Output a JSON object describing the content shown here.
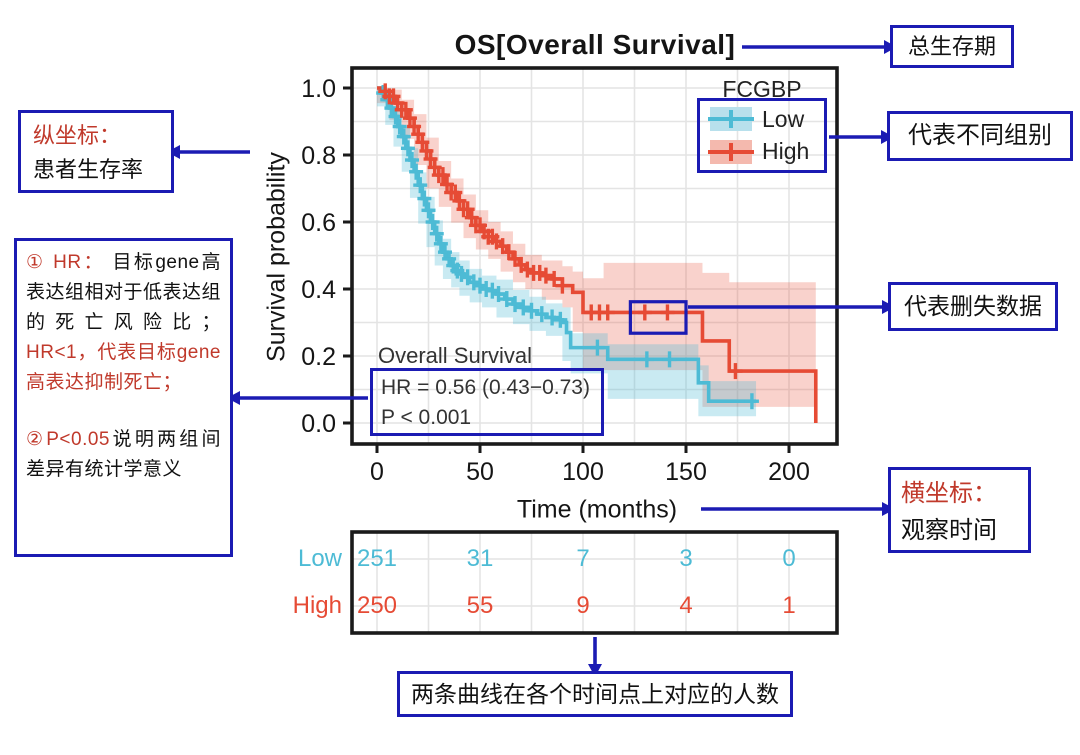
{
  "title": "OS[Overall Survival]",
  "colors": {
    "annotation_blue": "#1b1bb3",
    "red_text": "#c0392b",
    "low": "#4DBBD5",
    "high": "#E64B35",
    "low_band": "rgba(77,187,213,0.30)",
    "high_band": "rgba(230,75,53,0.25)",
    "low_swatch_bg": "#b8e0ec",
    "high_swatch_bg": "#f4b9ae",
    "frame": "#1a1a1a",
    "grid": "#e4e4e4"
  },
  "annotations": {
    "os": "总生存期",
    "groups": "代表不同组别",
    "censored": "代表删失数据",
    "xaxis": {
      "red": "横坐标：",
      "black": "观察时间"
    },
    "yaxis": {
      "red": "纵坐标：",
      "black": "患者生存率"
    },
    "hr": {
      "seg1_red": "① HR： ",
      "seg2_black": "目标gene高表达组相对于低表达组的死亡风险比；",
      "seg3_red": "HR<1，代表目标gene高表达抑制死亡；",
      "seg4_red": "②P<0.05",
      "seg5_black": "说明两组间差异有统计学意义"
    },
    "bottom": "两条曲线在各个时间点上对应的人数"
  },
  "chart_data": {
    "type": "line",
    "subtype": "kaplan-meier-step",
    "title": "OS[Overall Survival]",
    "xlabel": "Time (months)",
    "ylabel": "Survival probability",
    "xlim": [
      0,
      223
    ],
    "ylim": [
      0,
      1
    ],
    "x_ticks": [
      0,
      50,
      100,
      150,
      200
    ],
    "y_ticks": [
      1.0,
      0.8,
      0.6,
      0.4,
      0.2,
      0.0
    ],
    "grid": true,
    "legend_title": "FCGBP",
    "legend_position": "top-right",
    "inplot_label": "Overall Survival",
    "stats": {
      "hr": "HR = 0.56 (0.43−0.73)",
      "p": "P < 0.001"
    },
    "series": [
      {
        "name": "Low",
        "steps": [
          [
            0,
            1.0
          ],
          [
            2,
            0.985
          ],
          [
            4,
            0.965
          ],
          [
            6,
            0.94
          ],
          [
            8,
            0.915
          ],
          [
            10,
            0.885
          ],
          [
            12,
            0.855
          ],
          [
            14,
            0.82
          ],
          [
            16,
            0.785
          ],
          [
            18,
            0.75
          ],
          [
            20,
            0.71
          ],
          [
            22,
            0.67
          ],
          [
            24,
            0.635
          ],
          [
            26,
            0.6
          ],
          [
            28,
            0.565
          ],
          [
            30,
            0.535
          ],
          [
            32,
            0.51
          ],
          [
            34,
            0.49
          ],
          [
            36,
            0.47
          ],
          [
            38,
            0.455
          ],
          [
            40,
            0.445
          ],
          [
            42,
            0.435
          ],
          [
            45,
            0.42
          ],
          [
            48,
            0.41
          ],
          [
            51,
            0.4
          ],
          [
            54,
            0.395
          ],
          [
            58,
            0.385
          ],
          [
            62,
            0.37
          ],
          [
            66,
            0.355
          ],
          [
            70,
            0.345
          ],
          [
            74,
            0.335
          ],
          [
            78,
            0.325
          ],
          [
            82,
            0.315
          ],
          [
            86,
            0.308
          ],
          [
            90,
            0.3
          ],
          [
            92,
            0.27
          ],
          [
            94,
            0.225
          ],
          [
            112,
            0.19
          ],
          [
            156,
            0.12
          ],
          [
            161,
            0.065
          ],
          [
            184,
            0.065
          ]
        ],
        "censor_times": [
          3,
          5,
          7,
          9,
          11,
          13,
          15,
          17,
          19,
          21,
          23,
          25,
          27,
          29,
          31,
          33,
          35,
          37,
          39,
          41,
          44,
          47,
          50,
          53,
          56,
          59,
          63,
          67,
          71,
          75,
          80,
          85,
          89,
          107,
          131,
          142,
          182
        ],
        "ci_lo": [
          [
            0,
            0.99
          ],
          [
            4,
            0.945
          ],
          [
            8,
            0.89
          ],
          [
            12,
            0.825
          ],
          [
            16,
            0.75
          ],
          [
            20,
            0.672
          ],
          [
            24,
            0.595
          ],
          [
            28,
            0.525
          ],
          [
            32,
            0.47
          ],
          [
            36,
            0.43
          ],
          [
            40,
            0.405
          ],
          [
            45,
            0.38
          ],
          [
            51,
            0.36
          ],
          [
            58,
            0.345
          ],
          [
            66,
            0.315
          ],
          [
            74,
            0.295
          ],
          [
            82,
            0.275
          ],
          [
            90,
            0.26
          ],
          [
            94,
            0.185
          ],
          [
            112,
            0.148
          ],
          [
            156,
            0.072
          ],
          [
            161,
            0.02
          ],
          [
            184,
            0.02
          ]
        ],
        "ci_hi": [
          [
            0,
            1.0
          ],
          [
            4,
            0.985
          ],
          [
            8,
            0.94
          ],
          [
            12,
            0.885
          ],
          [
            16,
            0.82
          ],
          [
            20,
            0.748
          ],
          [
            24,
            0.675
          ],
          [
            28,
            0.605
          ],
          [
            32,
            0.55
          ],
          [
            36,
            0.51
          ],
          [
            40,
            0.485
          ],
          [
            45,
            0.46
          ],
          [
            51,
            0.44
          ],
          [
            58,
            0.428
          ],
          [
            66,
            0.397
          ],
          [
            74,
            0.377
          ],
          [
            82,
            0.357
          ],
          [
            90,
            0.345
          ],
          [
            94,
            0.268
          ],
          [
            112,
            0.235
          ],
          [
            156,
            0.172
          ],
          [
            161,
            0.125
          ],
          [
            184,
            0.125
          ]
        ]
      },
      {
        "name": "High",
        "steps": [
          [
            0,
            1.0
          ],
          [
            3,
            0.99
          ],
          [
            6,
            0.975
          ],
          [
            9,
            0.955
          ],
          [
            12,
            0.935
          ],
          [
            15,
            0.91
          ],
          [
            18,
            0.885
          ],
          [
            20,
            0.862
          ],
          [
            22,
            0.838
          ],
          [
            24,
            0.812
          ],
          [
            26,
            0.788
          ],
          [
            28,
            0.763
          ],
          [
            30,
            0.74
          ],
          [
            33,
            0.712
          ],
          [
            36,
            0.688
          ],
          [
            39,
            0.663
          ],
          [
            42,
            0.638
          ],
          [
            45,
            0.613
          ],
          [
            48,
            0.59
          ],
          [
            51,
            0.572
          ],
          [
            54,
            0.556
          ],
          [
            57,
            0.542
          ],
          [
            60,
            0.528
          ],
          [
            63,
            0.51
          ],
          [
            66,
            0.49
          ],
          [
            69,
            0.472
          ],
          [
            72,
            0.458
          ],
          [
            75,
            0.448
          ],
          [
            80,
            0.44
          ],
          [
            85,
            0.43
          ],
          [
            90,
            0.41
          ],
          [
            95,
            0.39
          ],
          [
            100,
            0.33
          ],
          [
            158,
            0.245
          ],
          [
            171,
            0.155
          ],
          [
            213,
            0.0
          ]
        ],
        "censor_times": [
          4,
          6,
          8,
          10,
          12,
          14,
          16,
          18,
          20,
          22,
          24,
          26,
          28,
          30,
          32,
          34,
          36,
          38,
          40,
          42,
          44,
          46,
          48,
          50,
          52,
          54,
          56,
          58,
          61,
          64,
          67,
          70,
          73,
          76,
          79,
          82,
          86,
          90,
          104,
          108,
          112,
          130,
          141,
          174
        ],
        "ci_lo": [
          [
            0,
            0.99
          ],
          [
            6,
            0.955
          ],
          [
            12,
            0.905
          ],
          [
            18,
            0.848
          ],
          [
            24,
            0.77
          ],
          [
            30,
            0.7
          ],
          [
            36,
            0.645
          ],
          [
            42,
            0.598
          ],
          [
            48,
            0.552
          ],
          [
            54,
            0.518
          ],
          [
            60,
            0.49
          ],
          [
            66,
            0.452
          ],
          [
            72,
            0.42
          ],
          [
            80,
            0.4
          ],
          [
            90,
            0.368
          ],
          [
            95,
            0.345
          ],
          [
            100,
            0.272
          ],
          [
            158,
            0.158
          ],
          [
            171,
            0.048
          ],
          [
            213,
            0.048
          ]
        ],
        "ci_hi": [
          [
            0,
            1.0
          ],
          [
            6,
            0.995
          ],
          [
            12,
            0.965
          ],
          [
            18,
            0.922
          ],
          [
            24,
            0.852
          ],
          [
            30,
            0.782
          ],
          [
            36,
            0.73
          ],
          [
            42,
            0.682
          ],
          [
            48,
            0.635
          ],
          [
            54,
            0.6
          ],
          [
            60,
            0.572
          ],
          [
            66,
            0.535
          ],
          [
            72,
            0.502
          ],
          [
            80,
            0.485
          ],
          [
            90,
            0.468
          ],
          [
            95,
            0.452
          ],
          [
            100,
            0.432
          ],
          [
            110,
            0.478
          ],
          [
            158,
            0.448
          ],
          [
            171,
            0.42
          ],
          [
            213,
            0.42
          ]
        ]
      }
    ],
    "censor_highlight": {
      "t0": 123,
      "t1": 150,
      "s0": 0.268,
      "s1": 0.362
    },
    "risk_table": {
      "x_positions": [
        0,
        50,
        100,
        150,
        200
      ],
      "rows": [
        {
          "name": "Low",
          "counts": [
            251,
            31,
            7,
            3,
            0
          ]
        },
        {
          "name": "High",
          "counts": [
            250,
            55,
            9,
            4,
            1
          ]
        }
      ]
    }
  }
}
